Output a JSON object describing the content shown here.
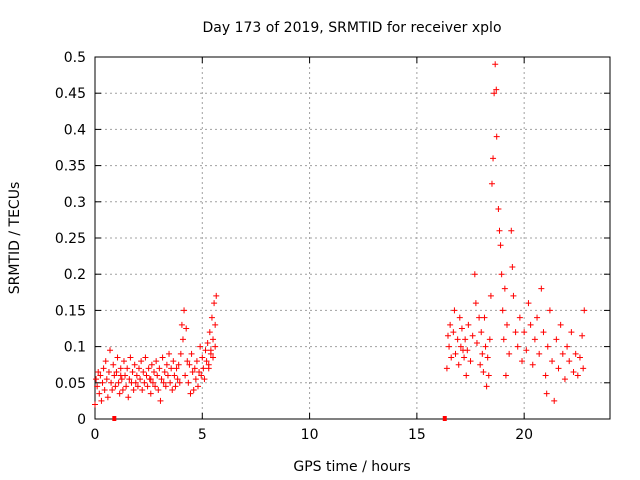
{
  "chart_data": {
    "type": "scatter",
    "title": "Day 173 of 2019, SRMTID for receiver xplo",
    "xlabel": "GPS time / hours",
    "ylabel": "SRMTID / TECUs",
    "xlim": [
      0,
      24
    ],
    "ylim": [
      0,
      0.5
    ],
    "x_ticks": [
      "0",
      "5",
      "10",
      "15",
      "20"
    ],
    "x_tick_values": [
      0,
      5,
      10,
      15,
      20
    ],
    "y_ticks": [
      "0",
      "0.05",
      "0.1",
      "0.15",
      "0.2",
      "0.25",
      "0.3",
      "0.35",
      "0.4",
      "0.45",
      "0.5"
    ],
    "y_tick_values": [
      0,
      0.05,
      0.1,
      0.15,
      0.2,
      0.25,
      0.3,
      0.35,
      0.4,
      0.45,
      0.5
    ],
    "grid": true,
    "marker": "+",
    "color": "#ff0000",
    "series": [
      {
        "values": [
          [
            0.0,
            0.02
          ],
          [
            0.05,
            0.055
          ],
          [
            0.1,
            0.045
          ],
          [
            0.15,
            0.065
          ],
          [
            0.2,
            0.035
          ],
          [
            0.25,
            0.06
          ],
          [
            0.3,
            0.025
          ],
          [
            0.35,
            0.05
          ],
          [
            0.4,
            0.07
          ],
          [
            0.45,
            0.04
          ],
          [
            0.5,
            0.08
          ],
          [
            0.55,
            0.055
          ],
          [
            0.6,
            0.03
          ],
          [
            0.65,
            0.065
          ],
          [
            0.7,
            0.095
          ],
          [
            0.75,
            0.05
          ],
          [
            0.8,
            0.04
          ],
          [
            0.85,
            0.075
          ],
          [
            0.9,
            0.06
          ],
          [
            0.95,
            0.045
          ],
          [
            1.0,
            0.065
          ],
          [
            1.05,
            0.085
          ],
          [
            1.1,
            0.05
          ],
          [
            1.15,
            0.035
          ],
          [
            1.2,
            0.07
          ],
          [
            1.25,
            0.055
          ],
          [
            1.3,
            0.04
          ],
          [
            1.35,
            0.08
          ],
          [
            1.4,
            0.06
          ],
          [
            1.45,
            0.045
          ],
          [
            1.5,
            0.07
          ],
          [
            1.55,
            0.03
          ],
          [
            1.6,
            0.055
          ],
          [
            1.65,
            0.085
          ],
          [
            1.7,
            0.05
          ],
          [
            1.75,
            0.065
          ],
          [
            1.8,
            0.04
          ],
          [
            1.85,
            0.075
          ],
          [
            1.9,
            0.05
          ],
          [
            1.95,
            0.06
          ],
          [
            2.0,
            0.045
          ],
          [
            2.05,
            0.07
          ],
          [
            2.1,
            0.055
          ],
          [
            2.15,
            0.08
          ],
          [
            2.2,
            0.04
          ],
          [
            2.25,
            0.065
          ],
          [
            2.3,
            0.05
          ],
          [
            2.35,
            0.085
          ],
          [
            2.4,
            0.06
          ],
          [
            2.45,
            0.045
          ],
          [
            2.5,
            0.07
          ],
          [
            2.55,
            0.055
          ],
          [
            2.6,
            0.035
          ],
          [
            2.65,
            0.075
          ],
          [
            2.7,
            0.05
          ],
          [
            2.75,
            0.065
          ],
          [
            2.8,
            0.045
          ],
          [
            2.85,
            0.08
          ],
          [
            2.9,
            0.06
          ],
          [
            2.95,
            0.04
          ],
          [
            3.0,
            0.07
          ],
          [
            3.05,
            0.025
          ],
          [
            3.1,
            0.055
          ],
          [
            3.15,
            0.085
          ],
          [
            3.2,
            0.05
          ],
          [
            3.25,
            0.065
          ],
          [
            3.3,
            0.045
          ],
          [
            3.35,
            0.075
          ],
          [
            3.4,
            0.06
          ],
          [
            3.45,
            0.09
          ],
          [
            3.5,
            0.05
          ],
          [
            3.55,
            0.07
          ],
          [
            3.6,
            0.04
          ],
          [
            3.65,
            0.08
          ],
          [
            3.7,
            0.06
          ],
          [
            3.75,
            0.045
          ],
          [
            3.8,
            0.07
          ],
          [
            3.85,
            0.055
          ],
          [
            3.9,
            0.075
          ],
          [
            3.95,
            0.05
          ],
          [
            4.0,
            0.09
          ],
          [
            4.05,
            0.13
          ],
          [
            4.1,
            0.11
          ],
          [
            4.15,
            0.15
          ],
          [
            4.2,
            0.06
          ],
          [
            4.25,
            0.125
          ],
          [
            4.3,
            0.08
          ],
          [
            4.35,
            0.05
          ],
          [
            4.4,
            0.075
          ],
          [
            4.45,
            0.035
          ],
          [
            4.5,
            0.09
          ],
          [
            4.55,
            0.065
          ],
          [
            4.6,
            0.04
          ],
          [
            4.65,
            0.07
          ],
          [
            4.7,
            0.055
          ],
          [
            4.75,
            0.08
          ],
          [
            4.8,
            0.045
          ],
          [
            4.85,
            0.065
          ],
          [
            4.9,
            0.1
          ],
          [
            4.95,
            0.06
          ],
          [
            5.0,
            0.085
          ],
          [
            5.05,
            0.07
          ],
          [
            5.1,
            0.055
          ],
          [
            5.15,
            0.095
          ],
          [
            5.2,
            0.08
          ],
          [
            5.25,
            0.105
          ],
          [
            5.3,
            0.07
          ],
          [
            5.35,
            0.12
          ],
          [
            5.4,
            0.09
          ],
          [
            5.45,
            0.14
          ],
          [
            5.5,
            0.11
          ],
          [
            5.55,
            0.16
          ],
          [
            5.6,
            0.13
          ],
          [
            5.65,
            0.17
          ],
          [
            5.6,
            0.1
          ],
          [
            5.5,
            0.085
          ],
          [
            5.4,
            0.095
          ],
          [
            5.3,
            0.075
          ],
          [
            1.2,
            0.06
          ],
          [
            2.6,
            0.055
          ],
          [
            16.4,
            0.07
          ],
          [
            16.5,
            0.1
          ],
          [
            16.55,
            0.13
          ],
          [
            16.6,
            0.085
          ],
          [
            16.7,
            0.12
          ],
          [
            16.75,
            0.15
          ],
          [
            16.8,
            0.09
          ],
          [
            16.9,
            0.11
          ],
          [
            16.95,
            0.075
          ],
          [
            17.0,
            0.14
          ],
          [
            17.05,
            0.1
          ],
          [
            17.1,
            0.125
          ],
          [
            17.2,
            0.085
          ],
          [
            17.25,
            0.11
          ],
          [
            17.3,
            0.06
          ],
          [
            17.35,
            0.095
          ],
          [
            17.4,
            0.13
          ],
          [
            17.5,
            0.08
          ],
          [
            17.6,
            0.115
          ],
          [
            17.7,
            0.2
          ],
          [
            17.75,
            0.16
          ],
          [
            17.8,
            0.105
          ],
          [
            17.9,
            0.14
          ],
          [
            17.95,
            0.075
          ],
          [
            18.0,
            0.12
          ],
          [
            18.05,
            0.09
          ],
          [
            18.1,
            0.065
          ],
          [
            18.2,
            0.1
          ],
          [
            18.25,
            0.045
          ],
          [
            18.3,
            0.085
          ],
          [
            18.35,
            0.06
          ],
          [
            18.4,
            0.11
          ],
          [
            18.45,
            0.17
          ],
          [
            18.5,
            0.325
          ],
          [
            18.55,
            0.36
          ],
          [
            18.6,
            0.45
          ],
          [
            18.65,
            0.49
          ],
          [
            18.7,
            0.455
          ],
          [
            18.72,
            0.39
          ],
          [
            18.8,
            0.29
          ],
          [
            18.85,
            0.26
          ],
          [
            18.9,
            0.24
          ],
          [
            18.95,
            0.2
          ],
          [
            19.0,
            0.15
          ],
          [
            19.05,
            0.11
          ],
          [
            19.1,
            0.18
          ],
          [
            19.2,
            0.13
          ],
          [
            19.3,
            0.09
          ],
          [
            19.4,
            0.26
          ],
          [
            19.45,
            0.21
          ],
          [
            19.5,
            0.17
          ],
          [
            19.6,
            0.12
          ],
          [
            19.7,
            0.1
          ],
          [
            19.8,
            0.14
          ],
          [
            19.9,
            0.08
          ],
          [
            20.0,
            0.12
          ],
          [
            20.1,
            0.095
          ],
          [
            20.2,
            0.16
          ],
          [
            20.3,
            0.13
          ],
          [
            20.4,
            0.075
          ],
          [
            20.5,
            0.11
          ],
          [
            20.6,
            0.14
          ],
          [
            20.7,
            0.09
          ],
          [
            20.8,
            0.18
          ],
          [
            20.9,
            0.12
          ],
          [
            21.0,
            0.06
          ],
          [
            21.1,
            0.1
          ],
          [
            21.2,
            0.15
          ],
          [
            21.3,
            0.08
          ],
          [
            21.4,
            0.025
          ],
          [
            21.5,
            0.11
          ],
          [
            21.6,
            0.07
          ],
          [
            21.7,
            0.13
          ],
          [
            21.8,
            0.09
          ],
          [
            21.9,
            0.055
          ],
          [
            22.0,
            0.1
          ],
          [
            22.1,
            0.08
          ],
          [
            22.2,
            0.12
          ],
          [
            22.3,
            0.065
          ],
          [
            22.4,
            0.09
          ],
          [
            22.5,
            0.06
          ],
          [
            22.6,
            0.085
          ],
          [
            22.7,
            0.115
          ],
          [
            22.75,
            0.07
          ],
          [
            22.8,
            0.15
          ],
          [
            16.45,
            0.115
          ],
          [
            17.15,
            0.095
          ],
          [
            18.15,
            0.14
          ],
          [
            19.15,
            0.06
          ],
          [
            21.05,
            0.035
          ]
        ]
      }
    ],
    "baseline_markers": [
      0.9,
      16.3
    ]
  }
}
